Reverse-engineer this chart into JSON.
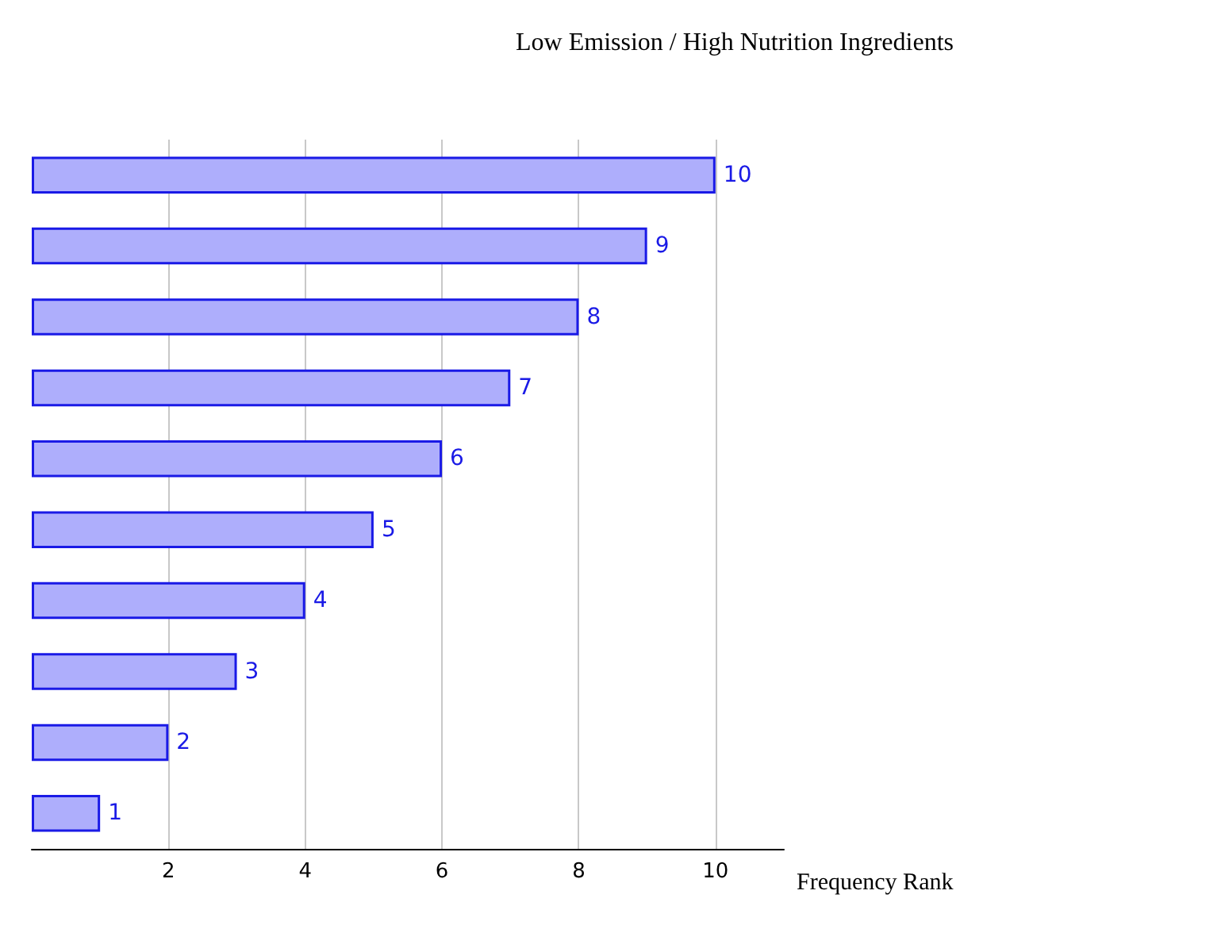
{
  "chart_data": {
    "type": "bar",
    "orientation": "horizontal",
    "title": "Low Emission / High Nutrition Ingredients",
    "xlabel": "Frequency Rank",
    "categories": [
      null,
      null,
      null,
      null,
      null,
      null,
      null,
      null,
      null,
      null
    ],
    "values": [
      10,
      9,
      8,
      7,
      6,
      5,
      4,
      3,
      2,
      1
    ],
    "color": "#aeaefc",
    "xlim": [
      0,
      11
    ],
    "xticks": [
      2,
      4,
      6,
      8,
      10
    ],
    "grid": "x",
    "data_labels": true
  }
}
